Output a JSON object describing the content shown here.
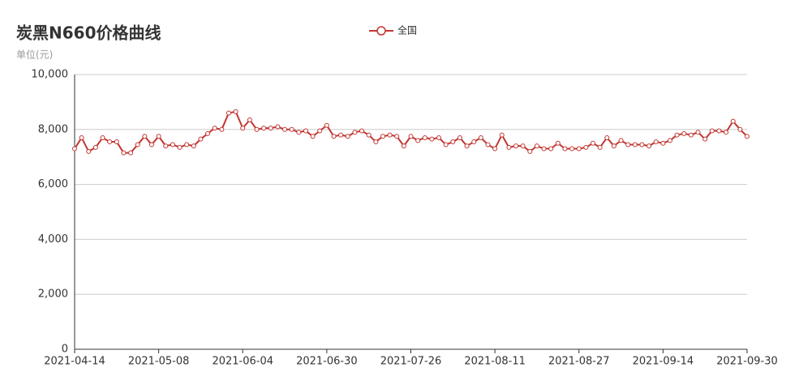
{
  "chart_data": {
    "type": "line",
    "title": "炭黑N660价格曲线",
    "subtitle": "单位(元)",
    "categories": [
      "2021-04-14",
      null,
      null,
      null,
      null,
      null,
      null,
      null,
      null,
      null,
      null,
      null,
      "2021-05-08",
      null,
      null,
      null,
      null,
      null,
      null,
      null,
      null,
      null,
      null,
      null,
      "2021-06-04",
      null,
      null,
      null,
      null,
      null,
      null,
      null,
      null,
      null,
      null,
      null,
      "2021-06-30",
      null,
      null,
      null,
      null,
      null,
      null,
      null,
      null,
      null,
      null,
      null,
      "2021-07-26",
      null,
      null,
      null,
      null,
      null,
      null,
      null,
      null,
      null,
      null,
      null,
      "2021-08-11",
      null,
      null,
      null,
      null,
      null,
      null,
      null,
      null,
      null,
      null,
      null,
      "2021-08-27",
      null,
      null,
      null,
      null,
      null,
      null,
      null,
      null,
      null,
      null,
      null,
      "2021-09-14",
      null,
      null,
      null,
      null,
      null,
      null,
      null,
      null,
      null,
      null,
      null,
      "2021-09-30"
    ],
    "series": [
      {
        "name": "全国",
        "color": "#c23531",
        "values": [
          7300,
          7700,
          7200,
          7350,
          7700,
          7550,
          7550,
          7150,
          7150,
          7450,
          7750,
          7450,
          7750,
          7400,
          7450,
          7350,
          7450,
          7400,
          7650,
          7850,
          8050,
          8000,
          8600,
          8650,
          8050,
          8350,
          8000,
          8050,
          8050,
          8100,
          8000,
          8000,
          7900,
          7950,
          7750,
          7950,
          8150,
          7750,
          7800,
          7750,
          7900,
          7950,
          7800,
          7550,
          7750,
          7800,
          7750,
          7400,
          7750,
          7600,
          7700,
          7650,
          7700,
          7450,
          7550,
          7700,
          7400,
          7550,
          7700,
          7450,
          7300,
          7800,
          7350,
          7400,
          7400,
          7200,
          7400,
          7300,
          7300,
          7500,
          7300,
          7300,
          7300,
          7350,
          7500,
          7350,
          7700,
          7400,
          7600,
          7450,
          7450,
          7450,
          7400,
          7550,
          7500,
          7600,
          7800,
          7850,
          7800,
          7900,
          7650,
          7950,
          7950,
          7900,
          8300,
          8000,
          7750
        ]
      }
    ],
    "ylim": [
      0,
      10000
    ],
    "yticks": [
      0,
      {
        "value": 2000,
        "label": "2,000"
      },
      {
        "value": 4000,
        "label": "4,000"
      },
      {
        "value": 6000,
        "label": "6,000"
      },
      {
        "value": 8000,
        "label": "8,000"
      },
      {
        "value": 10000,
        "label": "10,000"
      }
    ],
    "grid": true
  }
}
